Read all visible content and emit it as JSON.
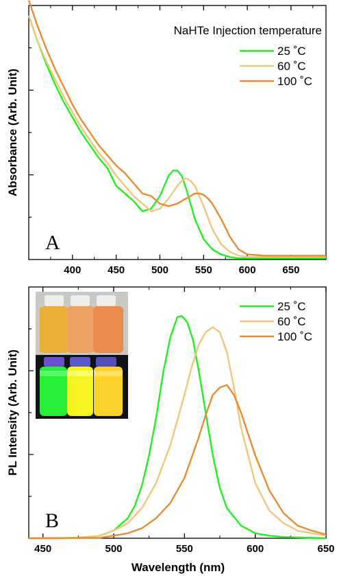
{
  "colors": {
    "c25": "#22ee22",
    "c60": "#efc77a",
    "c100": "#ea8a33",
    "axis": "#000000"
  },
  "chart_data": [
    {
      "type": "line",
      "panel_label": "A",
      "legend_title": "NaHTe Injection temperature",
      "legend_position": "top-right",
      "xlabel": "",
      "ylabel": "Absorbance (Arb. Unit)",
      "xlim": [
        350,
        690
      ],
      "ylim": [
        0,
        1.0
      ],
      "x_ticks": [
        400,
        450,
        500,
        550,
        600,
        650
      ],
      "y_tick_labels_shown": false,
      "series": [
        {
          "name": "25 ˚C",
          "color": "#22ee22",
          "x": [
            350,
            360,
            370,
            380,
            390,
            400,
            410,
            420,
            430,
            440,
            450,
            460,
            470,
            480,
            490,
            500,
            505,
            510,
            515,
            520,
            525,
            530,
            535,
            540,
            550,
            560,
            570,
            580,
            590,
            600,
            620,
            650,
            690
          ],
          "y": [
            0.96,
            0.86,
            0.77,
            0.69,
            0.62,
            0.56,
            0.5,
            0.45,
            0.4,
            0.36,
            0.29,
            0.26,
            0.23,
            0.19,
            0.2,
            0.25,
            0.29,
            0.33,
            0.35,
            0.35,
            0.33,
            0.28,
            0.22,
            0.16,
            0.08,
            0.04,
            0.02,
            0.01,
            0.005,
            0.005,
            0.005,
            0.005,
            0.005
          ]
        },
        {
          "name": "60 ˚C",
          "color": "#efc77a",
          "x": [
            350,
            360,
            370,
            380,
            390,
            400,
            410,
            420,
            430,
            440,
            450,
            460,
            470,
            480,
            490,
            500,
            510,
            520,
            525,
            530,
            535,
            540,
            550,
            560,
            570,
            580,
            590,
            600,
            620,
            650,
            690
          ],
          "y": [
            0.96,
            0.86,
            0.78,
            0.71,
            0.64,
            0.58,
            0.52,
            0.47,
            0.42,
            0.38,
            0.33,
            0.29,
            0.25,
            0.22,
            0.19,
            0.2,
            0.24,
            0.29,
            0.31,
            0.32,
            0.31,
            0.29,
            0.21,
            0.12,
            0.06,
            0.03,
            0.015,
            0.01,
            0.01,
            0.01,
            0.01
          ]
        },
        {
          "name": "100 ˚C",
          "color": "#ea8a33",
          "x": [
            350,
            360,
            370,
            380,
            390,
            400,
            410,
            420,
            430,
            440,
            450,
            460,
            470,
            480,
            490,
            500,
            510,
            520,
            530,
            540,
            545,
            550,
            555,
            560,
            570,
            580,
            590,
            600,
            620,
            650,
            690
          ],
          "y": [
            1.02,
            0.92,
            0.83,
            0.75,
            0.68,
            0.61,
            0.55,
            0.5,
            0.45,
            0.41,
            0.37,
            0.34,
            0.3,
            0.26,
            0.25,
            0.22,
            0.21,
            0.22,
            0.24,
            0.26,
            0.26,
            0.255,
            0.24,
            0.22,
            0.16,
            0.09,
            0.04,
            0.02,
            0.015,
            0.015,
            0.015
          ]
        }
      ]
    },
    {
      "type": "line",
      "panel_label": "B",
      "legend_position": "top-right",
      "xlabel": "Wavelength (nm)",
      "ylabel": "PL Intensity (Arb. Unit)",
      "xlim": [
        440,
        650
      ],
      "ylim": [
        0,
        1.0
      ],
      "x_ticks": [
        450,
        500,
        550,
        600,
        650
      ],
      "y_tick_labels_shown": false,
      "inset": "photo of vials under room light and UV light",
      "series": [
        {
          "name": "25 ˚C",
          "color": "#22ee22",
          "x": [
            440,
            460,
            480,
            490,
            500,
            510,
            515,
            520,
            525,
            530,
            535,
            540,
            545,
            548,
            552,
            556,
            560,
            565,
            570,
            575,
            580,
            590,
            600,
            610,
            620,
            650
          ],
          "y": [
            0,
            0,
            0.003,
            0.01,
            0.03,
            0.08,
            0.13,
            0.21,
            0.33,
            0.48,
            0.66,
            0.8,
            0.88,
            0.885,
            0.86,
            0.79,
            0.67,
            0.5,
            0.33,
            0.2,
            0.12,
            0.05,
            0.02,
            0.01,
            0.005,
            0
          ]
        },
        {
          "name": "60 ˚C",
          "color": "#efc77a",
          "x": [
            440,
            470,
            490,
            500,
            510,
            520,
            530,
            540,
            550,
            555,
            560,
            565,
            570,
            575,
            580,
            585,
            590,
            600,
            610,
            620,
            630,
            650
          ],
          "y": [
            0,
            0,
            0.01,
            0.03,
            0.06,
            0.12,
            0.22,
            0.37,
            0.57,
            0.68,
            0.77,
            0.82,
            0.84,
            0.82,
            0.74,
            0.6,
            0.44,
            0.22,
            0.11,
            0.06,
            0.03,
            0.01
          ]
        },
        {
          "name": "100 ˚C",
          "color": "#ea8a33",
          "x": [
            440,
            490,
            500,
            510,
            520,
            530,
            540,
            550,
            560,
            565,
            570,
            575,
            580,
            585,
            590,
            600,
            610,
            620,
            630,
            640,
            650
          ],
          "y": [
            0,
            0.002,
            0.01,
            0.02,
            0.04,
            0.08,
            0.14,
            0.24,
            0.4,
            0.49,
            0.57,
            0.6,
            0.61,
            0.57,
            0.5,
            0.33,
            0.19,
            0.1,
            0.05,
            0.03,
            0.015
          ]
        }
      ]
    }
  ]
}
